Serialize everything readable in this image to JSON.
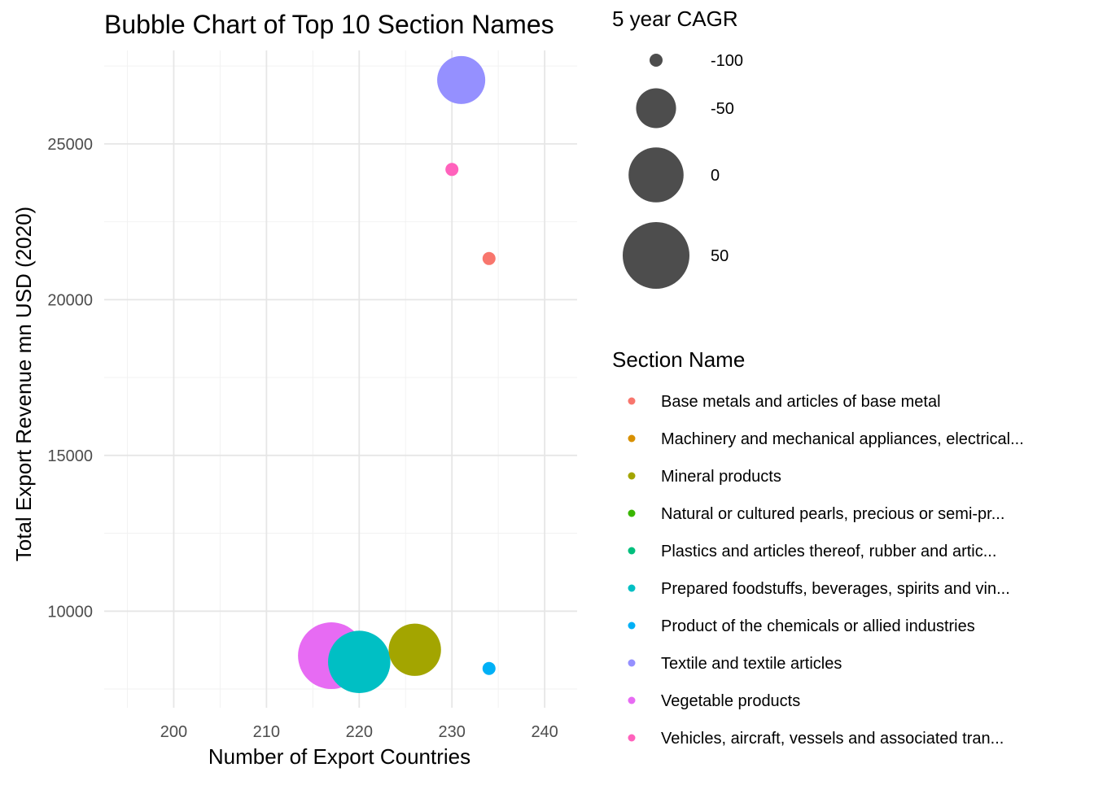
{
  "chart_data": {
    "type": "scatter",
    "title": "Bubble Chart of Top 10 Section Names",
    "xlabel": "Number of Export Countries",
    "ylabel": "Total Export Revenue mn USD (2020)",
    "xlim": [
      192.5,
      243.5
    ],
    "ylim": [
      6900,
      28000
    ],
    "x_ticks": [
      200,
      210,
      220,
      230,
      240
    ],
    "y_ticks": [
      10000,
      15000,
      20000,
      25000
    ],
    "grid": true,
    "size_legend": {
      "title": "5 year CAGR",
      "entries": [
        {
          "label": "-100",
          "value": -100
        },
        {
          "label": "-50",
          "value": -50
        },
        {
          "label": "0",
          "value": 0
        },
        {
          "label": "50",
          "value": 50
        }
      ]
    },
    "color_legend": {
      "title": "Section Name",
      "entries": [
        {
          "label": "Base metals and articles of base metal",
          "color": "#F8766D"
        },
        {
          "label": "Machinery and mechanical appliances, electrical...",
          "color": "#D89000"
        },
        {
          "label": "Mineral products",
          "color": "#A3A500"
        },
        {
          "label": "Natural or cultured pearls, precious or semi-pr...",
          "color": "#39B600"
        },
        {
          "label": "Plastics and articles thereof, rubber and artic...",
          "color": "#00BF7D"
        },
        {
          "label": "Prepared foodstuffs, beverages, spirits and vin...",
          "color": "#00BFC4"
        },
        {
          "label": "Product of the chemicals or allied industries",
          "color": "#00B0F6"
        },
        {
          "label": "Textile and textile articles",
          "color": "#9590FF"
        },
        {
          "label": "Vegetable products",
          "color": "#E76BF3"
        },
        {
          "label": "Vehicles, aircraft, vessels and associated tran...",
          "color": "#FF62BC"
        }
      ]
    },
    "points": [
      {
        "section": "Textile and textile articles",
        "x": 231,
        "y": 27050,
        "cagr": -25,
        "color": "#9590FF"
      },
      {
        "section": "Vehicles, aircraft, vessels and associated tran...",
        "x": 230,
        "y": 24180,
        "cagr": -100,
        "color": "#FF62BC"
      },
      {
        "section": "Base metals and articles of base metal",
        "x": 234,
        "y": 21320,
        "cagr": -100,
        "color": "#F8766D"
      },
      {
        "section": "Vegetable products",
        "x": 217,
        "y": 8570,
        "cagr": 50,
        "color": "#E76BF3"
      },
      {
        "section": "Prepared foodstuffs, beverages, spirits and vin...",
        "x": 220,
        "y": 8370,
        "cagr": 30,
        "color": "#00BFC4"
      },
      {
        "section": "Mineral products",
        "x": 226,
        "y": 8760,
        "cagr": -10,
        "color": "#A3A500"
      },
      {
        "section": "Product of the chemicals or allied industries",
        "x": 234,
        "y": 8160,
        "cagr": -100,
        "color": "#00B0F6"
      }
    ]
  }
}
